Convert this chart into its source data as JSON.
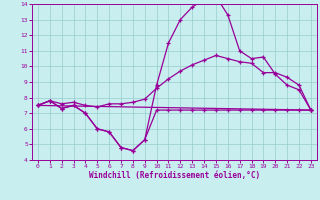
{
  "xlabel": "Windchill (Refroidissement éolien,°C)",
  "xlim": [
    -0.5,
    23.5
  ],
  "ylim": [
    4,
    14
  ],
  "xticks": [
    0,
    1,
    2,
    3,
    4,
    5,
    6,
    7,
    8,
    9,
    10,
    11,
    12,
    13,
    14,
    15,
    16,
    17,
    18,
    19,
    20,
    21,
    22,
    23
  ],
  "yticks": [
    4,
    5,
    6,
    7,
    8,
    9,
    10,
    11,
    12,
    13,
    14
  ],
  "bg_color": "#c8eef0",
  "line_color": "#990099",
  "grid_color": "#99cccc",
  "series1_x": [
    0,
    1,
    2,
    3,
    4,
    5,
    6,
    7,
    8,
    9,
    10,
    11,
    12,
    13,
    14,
    15,
    16,
    17,
    18,
    19,
    20,
    21,
    22,
    23
  ],
  "series1_y": [
    7.5,
    7.8,
    7.3,
    7.5,
    7.0,
    6.0,
    5.8,
    4.8,
    4.6,
    5.3,
    7.2,
    7.2,
    7.2,
    7.2,
    7.2,
    7.2,
    7.2,
    7.2,
    7.2,
    7.2,
    7.2,
    7.2,
    7.2,
    7.2
  ],
  "series2_x": [
    0,
    1,
    2,
    3,
    4,
    5,
    6,
    7,
    8,
    9,
    10,
    11,
    12,
    13,
    14,
    15,
    16,
    17,
    18,
    19,
    20,
    21,
    22,
    23
  ],
  "series2_y": [
    7.5,
    7.8,
    7.3,
    7.5,
    7.0,
    6.0,
    5.8,
    4.8,
    4.6,
    5.3,
    8.8,
    11.5,
    13.0,
    13.8,
    14.3,
    14.5,
    13.3,
    11.0,
    10.5,
    10.6,
    9.5,
    8.8,
    8.5,
    7.2
  ],
  "series3_x": [
    0,
    23
  ],
  "series3_y": [
    7.5,
    7.2
  ],
  "series4_x": [
    0,
    1,
    2,
    3,
    4,
    5,
    6,
    7,
    8,
    9,
    10,
    11,
    12,
    13,
    14,
    15,
    16,
    17,
    18,
    19,
    20,
    21,
    22,
    23
  ],
  "series4_y": [
    7.5,
    7.8,
    7.6,
    7.7,
    7.5,
    7.4,
    7.6,
    7.6,
    7.7,
    7.9,
    8.6,
    9.2,
    9.7,
    10.1,
    10.4,
    10.7,
    10.5,
    10.3,
    10.2,
    9.6,
    9.6,
    9.3,
    8.8,
    7.2
  ]
}
